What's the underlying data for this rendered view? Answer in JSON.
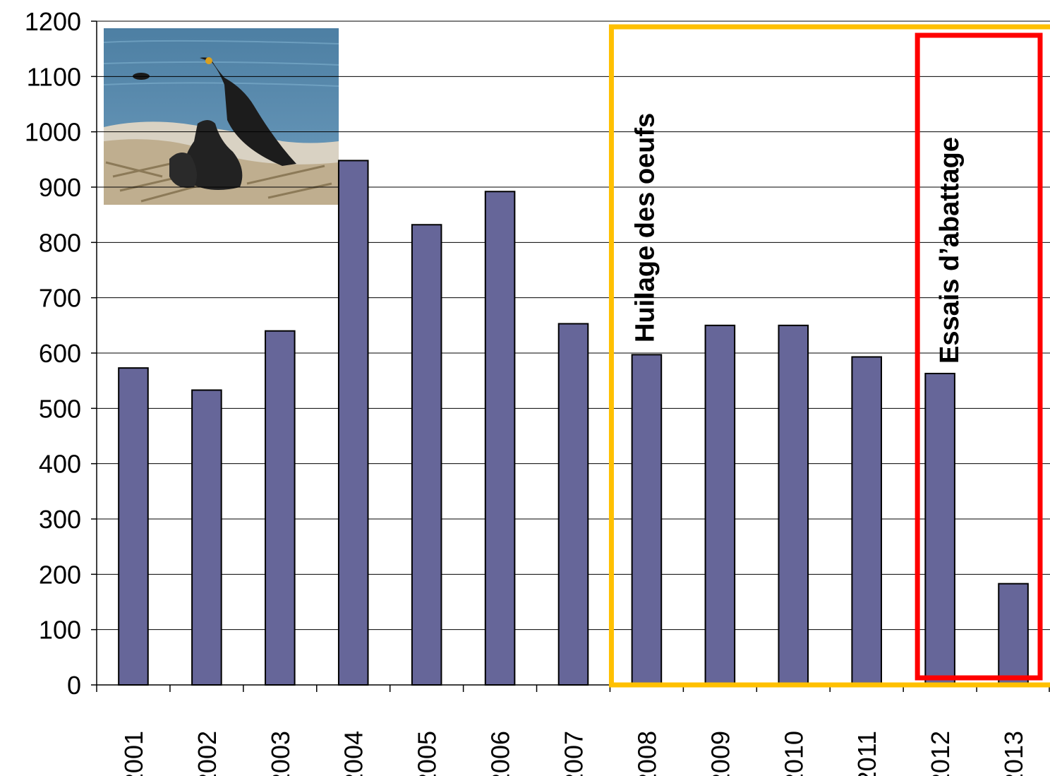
{
  "chart_data": {
    "type": "bar",
    "title": "",
    "xlabel": "",
    "ylabel": "",
    "categories": [
      "2001",
      "2002",
      "2003",
      "2004",
      "2005",
      "2006",
      "2007",
      "2008",
      "2009",
      "2010",
      "2011",
      "2012",
      "2013"
    ],
    "values": [
      573,
      533,
      640,
      948,
      832,
      892,
      653,
      597,
      650,
      650,
      593,
      563,
      183
    ],
    "ylim": [
      0,
      1200
    ],
    "yticks": [
      0,
      100,
      200,
      300,
      400,
      500,
      600,
      700,
      800,
      900,
      1000,
      1100,
      1200
    ],
    "grid": true,
    "legend": "none",
    "bar_color": "#666699",
    "annotations": [
      {
        "text": "Huilage des oeufs",
        "from": "2008",
        "to": "2013",
        "color": "#FFC000"
      },
      {
        "text": "Essais d’abattage",
        "from": "2012",
        "to": "2013",
        "color": "#FF0000"
      }
    ],
    "photo": "cormorant-nest-photo-icon"
  }
}
